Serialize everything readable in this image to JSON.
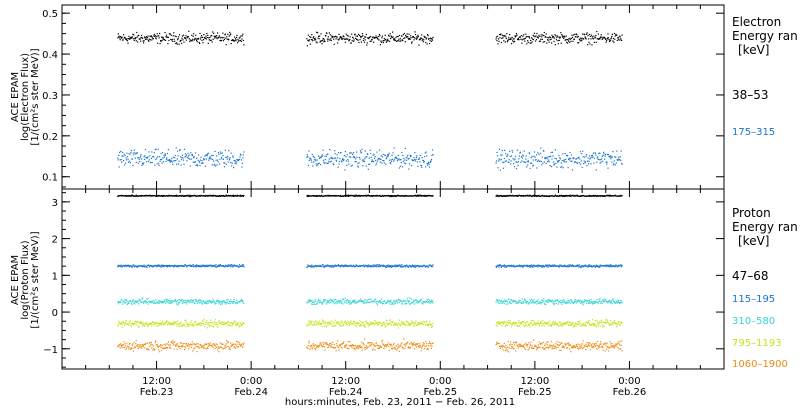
{
  "chart_data": [
    {
      "type": "scatter",
      "panel": "electron",
      "ylabel_lines": [
        "ACE EPAM",
        "log(Electron Flux)",
        "[1/(cm²s ster MeV)]"
      ],
      "ylim": [
        0.07,
        0.52
      ],
      "yticks": [
        0.1,
        0.2,
        0.3,
        0.4,
        0.5
      ],
      "ytick_labels": [
        "0.1",
        "0.2",
        "0.3",
        "0.4",
        "0.5"
      ],
      "legend_title_lines": [
        "Electron",
        "Energy ran",
        "[keV]"
      ],
      "series": [
        {
          "name": "38–53",
          "color": "#000000",
          "mean": 0.44,
          "spread": 0.012
        },
        {
          "name": "175–315",
          "color": "#1874cd",
          "mean": 0.145,
          "spread": 0.02
        }
      ]
    },
    {
      "type": "scatter",
      "panel": "proton",
      "ylabel_lines": [
        "ACE EPAM",
        "log(Proton Flux)",
        "[1/(cm²s ster MeV)]"
      ],
      "ylim": [
        -1.55,
        3.35
      ],
      "yticks": [
        -1,
        0,
        1,
        2,
        3
      ],
      "ytick_labels": [
        "−1",
        "0",
        "1",
        "2",
        "3"
      ],
      "legend_title_lines": [
        "Proton",
        "Energy ran",
        "[keV]"
      ],
      "series": [
        {
          "name": "47–68",
          "color": "#000000",
          "mean": 3.18,
          "spread": 0.015
        },
        {
          "name": "115–195",
          "color": "#1874cd",
          "mean": 1.27,
          "spread": 0.03
        },
        {
          "name": "310–580",
          "color": "#36d4d4",
          "mean": 0.3,
          "spread": 0.07
        },
        {
          "name": "795–1193",
          "color": "#c8e21b",
          "mean": -0.3,
          "spread": 0.08
        },
        {
          "name": "1060–1900",
          "color": "#ee8a12",
          "mean": -0.9,
          "spread": 0.12
        }
      ]
    }
  ],
  "x_axis": {
    "title": "hours:minutes, Feb. 23, 2011 − Feb. 26, 2011",
    "xlim_hours": [
      0,
      84
    ],
    "data_segments_hours": [
      [
        7,
        23
      ],
      [
        31,
        47
      ],
      [
        55,
        71
      ]
    ],
    "ticks": [
      {
        "hour": 12,
        "time": "12:00",
        "date": "Feb.23"
      },
      {
        "hour": 24,
        "time": "0:00",
        "date": "Feb.24"
      },
      {
        "hour": 36,
        "time": "12:00",
        "date": "Feb.24"
      },
      {
        "hour": 48,
        "time": "0:00",
        "date": "Feb.25"
      },
      {
        "hour": 60,
        "time": "12:00",
        "date": "Feb.25"
      },
      {
        "hour": 72,
        "time": "0:00",
        "date": "Feb.26"
      }
    ]
  }
}
